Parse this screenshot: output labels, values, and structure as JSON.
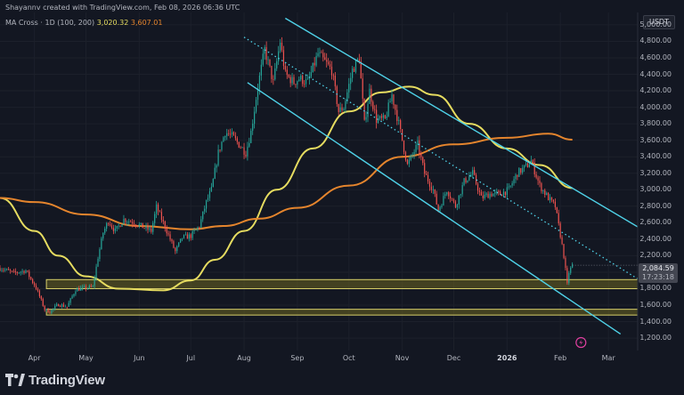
{
  "header": {
    "attribution": "Shayannv created with TradingView.com, Feb 08, 2026 06:36 UTC",
    "indicator": "MA Cross · 1D (100, 200)",
    "ma100_value": "3,020.32",
    "ma200_value": "3,607.01"
  },
  "quote_unit": "USDT",
  "last_price": {
    "price": "2,084.59",
    "countdown": "17:23:18"
  },
  "brand": "TradingView",
  "colors": {
    "background": "#131722",
    "up": "#26a69a",
    "down": "#ef5350",
    "ma100": "#e6dc60",
    "ma200": "#e5852d",
    "channel": "#4fd2e8",
    "zone_fill": "#6b6420",
    "zone_border": "#d8cf6a",
    "alert_icon": "#e040a0"
  },
  "chart_data": {
    "type": "candlestick",
    "y_range": [
      1050,
      5150
    ],
    "y_ticks": [
      "5,000.00",
      "4,800.00",
      "4,600.00",
      "4,400.00",
      "4,200.00",
      "4,000.00",
      "3,800.00",
      "3,600.00",
      "3,400.00",
      "3,200.00",
      "3,000.00",
      "2,800.00",
      "2,600.00",
      "2,400.00",
      "2,200.00",
      "2,000.00",
      "1,800.00",
      "1,600.00",
      "1,400.00",
      "1,200.00"
    ],
    "x_labels": [
      {
        "label": "Apr",
        "date": "2025-04-01"
      },
      {
        "label": "May",
        "date": "2025-05-01"
      },
      {
        "label": "Jun",
        "date": "2025-06-01"
      },
      {
        "label": "Jul",
        "date": "2025-07-01"
      },
      {
        "label": "Aug",
        "date": "2025-08-01"
      },
      {
        "label": "Sep",
        "date": "2025-09-01"
      },
      {
        "label": "Oct",
        "date": "2025-10-01"
      },
      {
        "label": "Nov",
        "date": "2025-11-01"
      },
      {
        "label": "Dec",
        "date": "2025-12-01"
      },
      {
        "label": "2026",
        "date": "2026-01-01",
        "bold": true
      },
      {
        "label": "Feb",
        "date": "2026-02-01"
      },
      {
        "label": "Mar",
        "date": "2026-03-01"
      }
    ],
    "x_domain": [
      "2025-03-12",
      "2026-03-18"
    ],
    "price_path": [
      [
        "2025-03-12",
        2050
      ],
      [
        "2025-03-20",
        1990
      ],
      [
        "2025-03-27",
        2020
      ],
      [
        "2025-04-02",
        1810
      ],
      [
        "2025-04-07",
        1550
      ],
      [
        "2025-04-10",
        1520
      ],
      [
        "2025-04-15",
        1610
      ],
      [
        "2025-04-20",
        1580
      ],
      [
        "2025-04-25",
        1790
      ],
      [
        "2025-05-01",
        1810
      ],
      [
        "2025-05-05",
        1820
      ],
      [
        "2025-05-08",
        2180
      ],
      [
        "2025-05-11",
        2480
      ],
      [
        "2025-05-14",
        2620
      ],
      [
        "2025-05-18",
        2500
      ],
      [
        "2025-05-23",
        2640
      ],
      [
        "2025-05-28",
        2610
      ],
      [
        "2025-06-03",
        2550
      ],
      [
        "2025-06-08",
        2500
      ],
      [
        "2025-06-11",
        2790
      ],
      [
        "2025-06-16",
        2550
      ],
      [
        "2025-06-22",
        2250
      ],
      [
        "2025-06-26",
        2420
      ],
      [
        "2025-07-01",
        2440
      ],
      [
        "2025-07-06",
        2560
      ],
      [
        "2025-07-10",
        2850
      ],
      [
        "2025-07-13",
        3000
      ],
      [
        "2025-07-17",
        3450
      ],
      [
        "2025-07-21",
        3700
      ],
      [
        "2025-07-25",
        3650
      ],
      [
        "2025-08-02",
        3450
      ],
      [
        "2025-08-05",
        3700
      ],
      [
        "2025-08-09",
        4250
      ],
      [
        "2025-08-13",
        4700
      ],
      [
        "2025-08-18",
        4300
      ],
      [
        "2025-08-22",
        4800
      ],
      [
        "2025-08-25",
        4400
      ],
      [
        "2025-08-30",
        4300
      ],
      [
        "2025-09-02",
        4350
      ],
      [
        "2025-09-07",
        4300
      ],
      [
        "2025-09-13",
        4650
      ],
      [
        "2025-09-17",
        4550
      ],
      [
        "2025-09-21",
        4450
      ],
      [
        "2025-09-25",
        3950
      ],
      [
        "2025-09-28",
        4000
      ],
      [
        "2025-10-03",
        4450
      ],
      [
        "2025-10-07",
        4600
      ],
      [
        "2025-10-10",
        3800
      ],
      [
        "2025-10-13",
        4200
      ],
      [
        "2025-10-17",
        3850
      ],
      [
        "2025-10-22",
        3850
      ],
      [
        "2025-10-26",
        4150
      ],
      [
        "2025-10-30",
        3800
      ],
      [
        "2025-11-04",
        3300
      ],
      [
        "2025-11-10",
        3550
      ],
      [
        "2025-11-14",
        3200
      ],
      [
        "2025-11-19",
        3000
      ],
      [
        "2025-11-22",
        2750
      ],
      [
        "2025-11-27",
        3000
      ],
      [
        "2025-12-02",
        2800
      ],
      [
        "2025-12-07",
        3100
      ],
      [
        "2025-12-12",
        3200
      ],
      [
        "2025-12-17",
        2900
      ],
      [
        "2025-12-22",
        2950
      ],
      [
        "2025-12-28",
        2950
      ],
      [
        "2026-01-02",
        3000
      ],
      [
        "2026-01-07",
        3200
      ],
      [
        "2026-01-13",
        3300
      ],
      [
        "2026-01-15",
        3350
      ],
      [
        "2026-01-20",
        3050
      ],
      [
        "2026-01-25",
        2900
      ],
      [
        "2026-01-29",
        2800
      ],
      [
        "2026-02-01",
        2450
      ],
      [
        "2026-02-03",
        2200
      ],
      [
        "2026-02-05",
        1850
      ],
      [
        "2026-02-06",
        2000
      ],
      [
        "2026-02-08",
        2085
      ]
    ],
    "series": [
      {
        "name": "MA 100",
        "points": [
          [
            "2025-03-12",
            2900
          ],
          [
            "2025-04-01",
            2500
          ],
          [
            "2025-04-15",
            2200
          ],
          [
            "2025-05-01",
            1950
          ],
          [
            "2025-05-20",
            1800
          ],
          [
            "2025-06-15",
            1780
          ],
          [
            "2025-07-01",
            1900
          ],
          [
            "2025-07-15",
            2150
          ],
          [
            "2025-08-01",
            2500
          ],
          [
            "2025-08-20",
            3000
          ],
          [
            "2025-09-10",
            3500
          ],
          [
            "2025-10-01",
            3950
          ],
          [
            "2025-10-20",
            4180
          ],
          [
            "2025-11-05",
            4250
          ],
          [
            "2025-11-20",
            4150
          ],
          [
            "2025-12-10",
            3800
          ],
          [
            "2026-01-01",
            3500
          ],
          [
            "2026-01-20",
            3300
          ],
          [
            "2026-02-08",
            3020
          ]
        ]
      },
      {
        "name": "MA 200",
        "points": [
          [
            "2025-03-12",
            2900
          ],
          [
            "2025-04-01",
            2850
          ],
          [
            "2025-05-01",
            2700
          ],
          [
            "2025-06-01",
            2560
          ],
          [
            "2025-07-01",
            2520
          ],
          [
            "2025-07-20",
            2560
          ],
          [
            "2025-08-10",
            2650
          ],
          [
            "2025-09-01",
            2780
          ],
          [
            "2025-10-01",
            3050
          ],
          [
            "2025-11-01",
            3400
          ],
          [
            "2025-12-01",
            3550
          ],
          [
            "2026-01-01",
            3630
          ],
          [
            "2026-01-25",
            3680
          ],
          [
            "2026-02-08",
            3607
          ]
        ]
      }
    ],
    "support_zones": [
      [
        1800,
        1910
      ],
      [
        1480,
        1550
      ]
    ],
    "channel_lines": [
      {
        "style": "solid",
        "from": [
          "2025-08-25",
          5080
        ],
        "to": [
          "2026-03-18",
          2550
        ]
      },
      {
        "style": "solid",
        "from": [
          "2025-08-03",
          4300
        ],
        "to": [
          "2026-03-08",
          1250
        ]
      },
      {
        "style": "dotted",
        "from": [
          "2025-08-01",
          4850
        ],
        "to": [
          "2026-03-18",
          1920
        ]
      }
    ]
  }
}
